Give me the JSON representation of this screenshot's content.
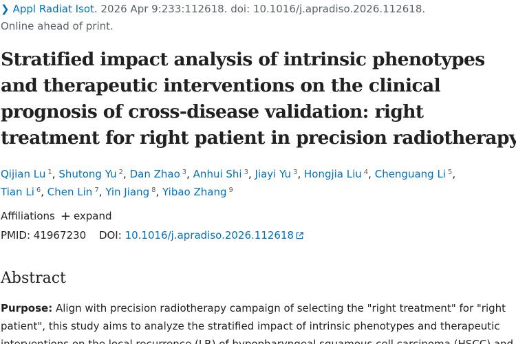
{
  "citation": {
    "journal": "Appl Radiat Isot.",
    "details": "2026 Apr 9:233:112618. doi: 10.1016/j.apradiso.2026.112618.",
    "status": "Online ahead of print."
  },
  "title_lines": [
    "Stratified impact analysis of intrinsic phenotypes",
    "and therapeutic interventions on the clinical",
    "prognosis of cross-disease validation: right",
    "treatment for right patient in precision radiotherapy"
  ],
  "authors": [
    {
      "name": "Qijian Lu",
      "aff": "1"
    },
    {
      "name": "Shutong Yu",
      "aff": "2"
    },
    {
      "name": "Dan Zhao",
      "aff": "3"
    },
    {
      "name": "Anhui Shi",
      "aff": "3"
    },
    {
      "name": "Jiayi Yu",
      "aff": "3"
    },
    {
      "name": "Hongjia Liu",
      "aff": "4"
    },
    {
      "name": "Chenguang Li",
      "aff": "5"
    },
    {
      "name": "Tian Li",
      "aff": "6"
    },
    {
      "name": "Chen Lin",
      "aff": "7"
    },
    {
      "name": "Yin Jiang",
      "aff": "8"
    },
    {
      "name": "Yibao Zhang",
      "aff": "9"
    }
  ],
  "affiliations": {
    "label": "Affiliations",
    "plus": "+",
    "expand": "expand"
  },
  "ids": {
    "pmid_label": "PMID:",
    "pmid": "41967230",
    "doi_label": "DOI:",
    "doi": "10.1016/j.apradiso.2026.112618"
  },
  "abstract": {
    "heading": "Abstract",
    "purpose_label": "Purpose:",
    "line1": "Align with precision radiotherapy campaign of selecting the \"right treatment\" for \"right",
    "line2": "patient\", this study aims to analyze the stratified impact of intrinsic phenotypes and therapeutic",
    "line3": "interventions on the local recurrence (LR) of hypopharyngeal squamous cell carcinoma (HSCC) and"
  },
  "colors": {
    "link": "#0071bc",
    "text": "#212121",
    "muted": "#5b616b"
  }
}
